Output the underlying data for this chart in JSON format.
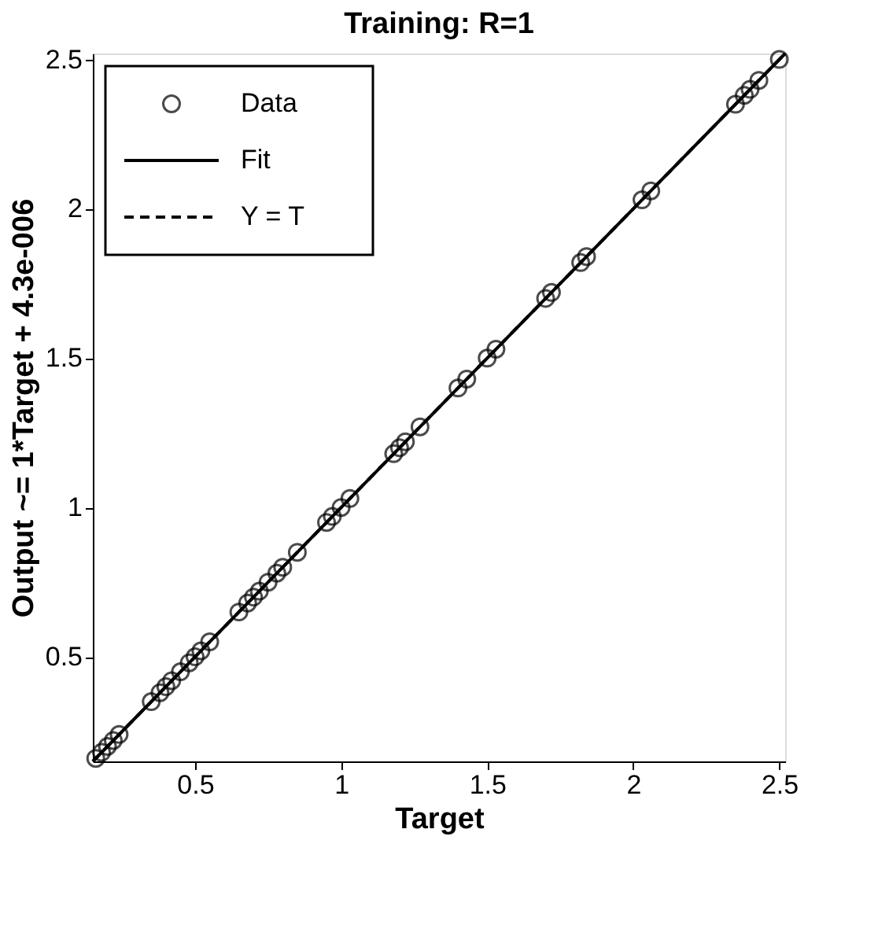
{
  "chart_data": {
    "type": "scatter",
    "title": "Training: R=1",
    "xlabel": "Target",
    "ylabel": "Output ~= 1*Target + 4.3e-006",
    "xlim": [
      0.15,
      2.52
    ],
    "ylim": [
      0.15,
      2.52
    ],
    "xticks": [
      0.5,
      1,
      1.5,
      2,
      2.5
    ],
    "yticks": [
      0.5,
      1,
      1.5,
      2,
      2.5
    ],
    "grid": false,
    "legend": "top left",
    "series": [
      {
        "name": "Data",
        "marker": "circle",
        "color": "#000000",
        "x": [
          0.16,
          0.18,
          0.2,
          0.22,
          0.24,
          0.35,
          0.38,
          0.4,
          0.42,
          0.45,
          0.48,
          0.5,
          0.52,
          0.55,
          0.65,
          0.68,
          0.7,
          0.72,
          0.75,
          0.78,
          0.8,
          0.85,
          0.95,
          0.97,
          1.0,
          1.03,
          1.18,
          1.2,
          1.22,
          1.27,
          1.4,
          1.43,
          1.5,
          1.53,
          1.7,
          1.72,
          1.82,
          1.84,
          2.03,
          2.06,
          2.35,
          2.38,
          2.4,
          2.43,
          2.5
        ],
        "values": [
          0.16,
          0.18,
          0.2,
          0.22,
          0.24,
          0.35,
          0.38,
          0.4,
          0.42,
          0.45,
          0.48,
          0.5,
          0.52,
          0.55,
          0.65,
          0.68,
          0.7,
          0.72,
          0.75,
          0.78,
          0.8,
          0.85,
          0.95,
          0.97,
          1.0,
          1.03,
          1.18,
          1.2,
          1.22,
          1.27,
          1.4,
          1.43,
          1.5,
          1.53,
          1.7,
          1.72,
          1.82,
          1.84,
          2.03,
          2.06,
          2.35,
          2.38,
          2.4,
          2.43,
          2.5
        ]
      },
      {
        "name": "Fit",
        "type": "line",
        "line_style": "solid",
        "color": "#000000",
        "x": [
          0.15,
          2.52
        ],
        "values": [
          0.15,
          2.52
        ]
      },
      {
        "name": "Y = T",
        "type": "line",
        "line_style": "dashed",
        "color": "#000000",
        "x": [
          0.15,
          2.52
        ],
        "values": [
          0.15,
          2.52
        ]
      }
    ]
  }
}
